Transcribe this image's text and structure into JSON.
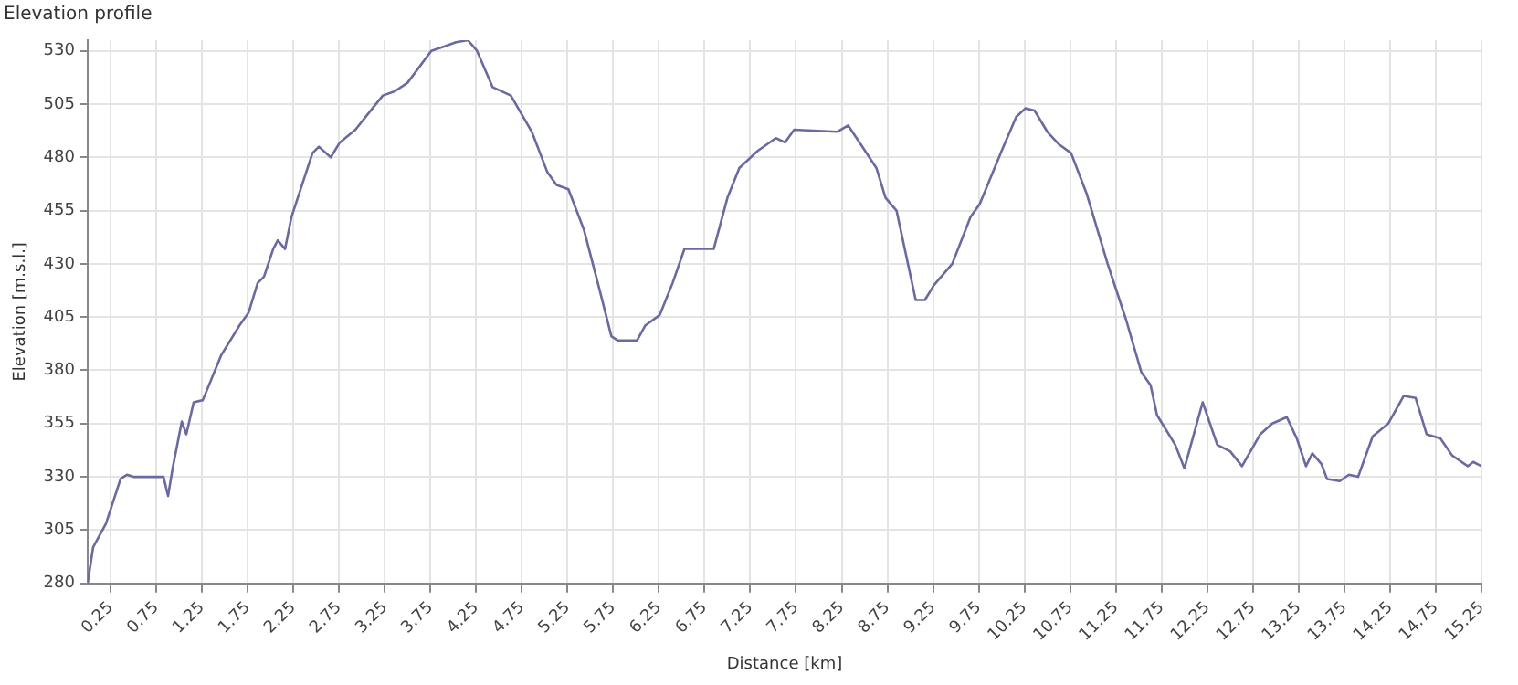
{
  "chart_data": {
    "type": "line",
    "title": "Elevation profile",
    "xlabel": "Distance [km]",
    "ylabel": "Elevation [m.s.l.]",
    "xlim": [
      0,
      15.25
    ],
    "xticks": [
      0.25,
      0.75,
      1.25,
      1.75,
      2.25,
      2.75,
      3.25,
      3.75,
      4.25,
      4.75,
      5.25,
      5.75,
      6.25,
      6.75,
      7.25,
      7.75,
      8.25,
      8.75,
      9.25,
      9.75,
      10.25,
      10.75,
      11.25,
      11.75,
      12.25,
      12.75,
      13.25,
      13.75,
      14.25,
      14.75,
      15.25
    ],
    "ylim": [
      280,
      535
    ],
    "yticks": [
      280,
      305,
      330,
      355,
      380,
      405,
      430,
      455,
      480,
      505,
      530
    ],
    "grid": true,
    "legend": false,
    "marker": "none",
    "line_style": "solid",
    "series": [
      {
        "color": "#6a6aa0",
        "x": [
          0,
          0.06,
          0.2,
          0.36,
          0.43,
          0.5,
          0.83,
          0.88,
          0.93,
          1.03,
          1.08,
          1.16,
          1.26,
          1.46,
          1.66,
          1.76,
          1.86,
          1.93,
          2.03,
          2.08,
          2.16,
          2.23,
          2.46,
          2.53,
          2.66,
          2.76,
          2.93,
          3.06,
          3.23,
          3.36,
          3.5,
          3.76,
          3.9,
          4.03,
          4.16,
          4.26,
          4.43,
          4.63,
          4.86,
          5.03,
          5.13,
          5.26,
          5.43,
          5.6,
          5.73,
          5.8,
          6.01,
          6.1,
          6.26,
          6.4,
          6.53,
          6.85,
          7.0,
          7.13,
          7.33,
          7.53,
          7.63,
          7.73,
          8.2,
          8.32,
          8.46,
          8.63,
          8.73,
          8.85,
          9.06,
          9.16,
          9.26,
          9.46,
          9.66,
          9.76,
          10.0,
          10.16,
          10.26,
          10.36,
          10.5,
          10.63,
          10.76,
          10.93,
          11.16,
          11.36,
          11.53,
          11.63,
          11.7,
          11.8,
          11.9,
          12.0,
          12.2,
          12.36,
          12.5,
          12.63,
          12.83,
          12.96,
          13.12,
          13.23,
          13.33,
          13.4,
          13.5,
          13.56,
          13.7,
          13.8,
          13.9,
          14.06,
          14.23,
          14.4,
          14.53,
          14.65,
          14.8,
          14.93,
          15.1,
          15.16,
          15.25
        ],
        "values": [
          280,
          297,
          308,
          329,
          331,
          330,
          330,
          321,
          334,
          356,
          350,
          365,
          366,
          387,
          401,
          407,
          421,
          424,
          437,
          441,
          437,
          452,
          482,
          485,
          480,
          487,
          493,
          500,
          509,
          511,
          515,
          530,
          532,
          534,
          535,
          530,
          513,
          509,
          492,
          473,
          467,
          465,
          446,
          418,
          396,
          394,
          394,
          401,
          406,
          421,
          437,
          437,
          461,
          475,
          483,
          489,
          487,
          493,
          492,
          495,
          486,
          475,
          461,
          455,
          413,
          413,
          420,
          430,
          452,
          458,
          483,
          499,
          503,
          502,
          492,
          486,
          482,
          463,
          430,
          404,
          379,
          373,
          359,
          352,
          345,
          334,
          365,
          345,
          342,
          335,
          350,
          355,
          358,
          348,
          335,
          341,
          336,
          329,
          328,
          331,
          330,
          349,
          355,
          368,
          367,
          350,
          348,
          340,
          335,
          337,
          335
        ]
      }
    ]
  }
}
